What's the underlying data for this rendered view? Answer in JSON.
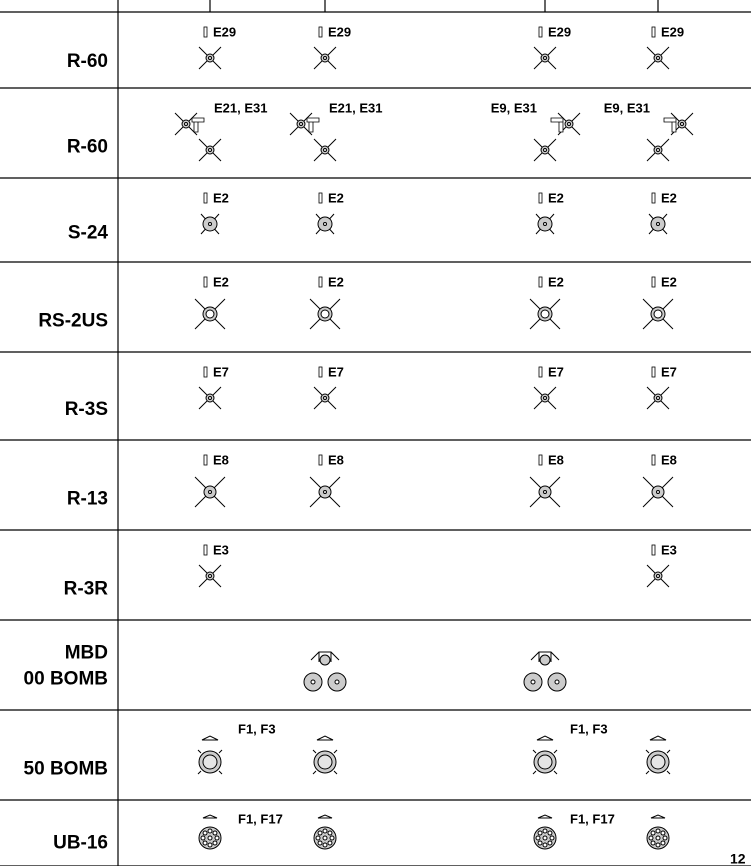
{
  "rows": [
    {
      "label": [
        "R-60"
      ],
      "notes": [
        "E29",
        "E29",
        "E29",
        "E29"
      ]
    },
    {
      "label": [
        "R-60"
      ],
      "notes": [
        "E21, E31",
        "E21, E31",
        "E9, E31",
        "E9, E31"
      ]
    },
    {
      "label": [
        "S-24"
      ],
      "notes": [
        "E2",
        "E2",
        "E2",
        "E2"
      ]
    },
    {
      "label": [
        "RS-2US"
      ],
      "notes": [
        "E2",
        "E2",
        "E2",
        "E2"
      ]
    },
    {
      "label": [
        "R-3S"
      ],
      "notes": [
        "E7",
        "E7",
        "E7",
        "E7"
      ]
    },
    {
      "label": [
        "R-13"
      ],
      "notes": [
        "E8",
        "E8",
        "E8",
        "E8"
      ]
    },
    {
      "label": [
        "R-3R"
      ],
      "notes": [
        "E3",
        "E3"
      ]
    },
    {
      "label": [
        "MBD",
        "00 BOMB"
      ],
      "notes": []
    },
    {
      "label": [
        "50 BOMB"
      ],
      "notes": [
        "F1, F3",
        "F1, F3"
      ]
    },
    {
      "label": [
        "UB-16"
      ],
      "notes": [
        "F1, F17",
        "F1, F17"
      ]
    }
  ],
  "page_number": "12"
}
